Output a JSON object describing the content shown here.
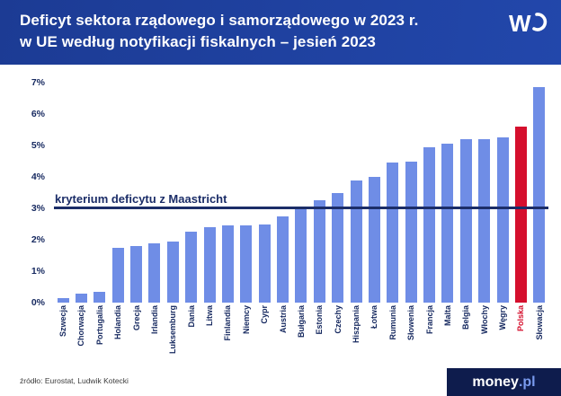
{
  "header": {
    "title_line1": "Deficyt sektora rządowego i samorządowego w 2023 r.",
    "title_line2": "w UE według notyfikacji fiskalnych – jesień 2023",
    "logo": "WP"
  },
  "colors": {
    "header_bg": "#1c3b94",
    "bar": "#6f8de6",
    "highlight_bar": "#d50f2d",
    "reference_line": "#1b2d68",
    "text_navy": "#15285f",
    "footer_logo_bg": "#0e1c4d"
  },
  "chart_data": {
    "type": "bar",
    "title": "Deficyt sektora rządowego i samorządowego w 2023 r. w UE według notyfikacji fiskalnych – jesień 2023",
    "categories": [
      "Szwecja",
      "Chorwacja",
      "Portugalia",
      "Holandia",
      "Grecja",
      "Irlandia",
      "Luksemburg",
      "Dania",
      "Litwa",
      "Finlandia",
      "Niemcy",
      "Cypr",
      "Austria",
      "Bułgaria",
      "Estonia",
      "Czechy",
      "Hiszpania",
      "Łotwa",
      "Rumunia",
      "Słowenia",
      "Francja",
      "Malta",
      "Belgia",
      "Włochy",
      "Węgry",
      "Polska",
      "Słowacja"
    ],
    "values": [
      0.15,
      0.3,
      0.35,
      1.75,
      1.8,
      1.9,
      1.95,
      2.25,
      2.4,
      2.45,
      2.45,
      2.5,
      2.75,
      3.05,
      3.25,
      3.5,
      3.9,
      4.0,
      4.45,
      4.5,
      4.95,
      5.05,
      5.2,
      5.2,
      5.25,
      5.6,
      6.85
    ],
    "value_unit": "%",
    "highlight_category": "Polska",
    "highlight_index": 25,
    "reference_line": {
      "value": 3,
      "label": "kryterium deficytu z Maastricht"
    },
    "xlabel": "",
    "ylabel": "",
    "ylim": [
      0,
      7
    ],
    "yticks": [
      "0%",
      "1%",
      "2%",
      "3%",
      "4%",
      "5%",
      "6%",
      "7%"
    ],
    "grid": false,
    "legend": false
  },
  "footer": {
    "source": "źródło: Eurostat, Ludwik Kotecki",
    "logo": {
      "money": "money",
      "pl": ".pl"
    }
  }
}
